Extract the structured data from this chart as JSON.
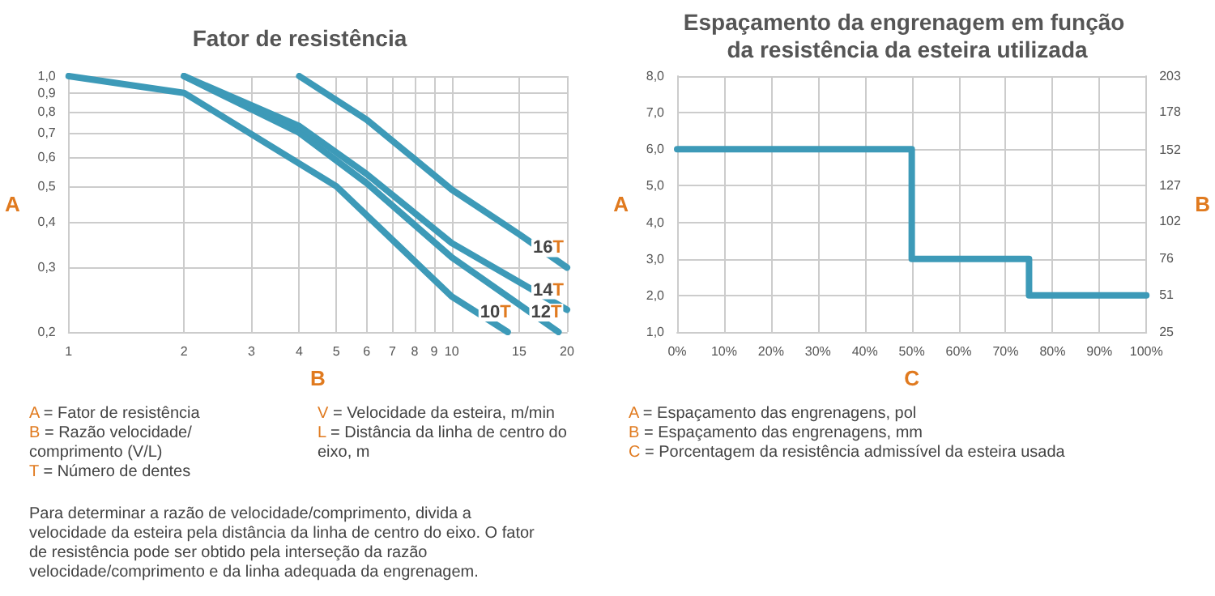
{
  "chart_data": [
    {
      "type": "line",
      "title": "Fator de resistência",
      "xlabel": "B",
      "ylabel": "A",
      "log": "xy",
      "grid": true,
      "legend": false,
      "marker": "none",
      "xlim": [
        1,
        20
      ],
      "xticks": [
        1,
        2,
        3,
        4,
        5,
        6,
        7,
        8,
        9,
        10,
        15,
        20
      ],
      "ylim": [
        0.2,
        1.0
      ],
      "yticks": [
        {
          "value": 0.2,
          "label": "0,2"
        },
        {
          "value": 0.3,
          "label": "0,3"
        },
        {
          "value": 0.4,
          "label": "0,4"
        },
        {
          "value": 0.5,
          "label": "0,5"
        },
        {
          "value": 0.6,
          "label": "0,6"
        },
        {
          "value": 0.7,
          "label": "0,7"
        },
        {
          "value": 0.8,
          "label": "0,8"
        },
        {
          "value": 0.9,
          "label": "0,9"
        },
        {
          "value": 1.0,
          "label": "1,0"
        }
      ],
      "series": [
        {
          "name": "10T",
          "color": "#3d9ab8",
          "x": [
            1,
            2,
            5,
            10,
            14
          ],
          "values": [
            1.0,
            0.9,
            0.5,
            0.25,
            0.2
          ]
        },
        {
          "name": "12T",
          "color": "#3d9ab8",
          "x": [
            2,
            4,
            6,
            10,
            19
          ],
          "values": [
            1.0,
            0.7,
            0.51,
            0.32,
            0.2
          ]
        },
        {
          "name": "14T",
          "color": "#3d9ab8",
          "x": [
            2,
            4,
            6,
            10,
            20
          ],
          "values": [
            1.0,
            0.73,
            0.54,
            0.35,
            0.23
          ]
        },
        {
          "name": "16T",
          "color": "#3d9ab8",
          "x": [
            4,
            6,
            10,
            15,
            20
          ],
          "values": [
            1.0,
            0.76,
            0.49,
            0.37,
            0.3
          ]
        }
      ],
      "annotations": [
        "A = Fator de resistência",
        "B = Razão velocidade/ comprimento (V/L)",
        "T = Número de dentes",
        "V = Velocidade da esteira, m/min",
        "L = Distância da linha de centro do eixo, m",
        "Para determinar a razão de velocidade/comprimento, divida a velocidade da esteira pela distância da linha de centro do eixo. O fator de resistência pode ser obtido pela interseção da razão velocidade/comprimento e da linha adequada da engrenagem."
      ]
    },
    {
      "type": "step",
      "title": "Espaçamento da engrenagem em função da resistência da esteira utilizada",
      "xlabel": "C",
      "ylabel": "A",
      "y2label": "B",
      "grid": true,
      "legend": false,
      "marker": "none",
      "x": [
        0,
        50,
        75,
        100
      ],
      "values": [
        6,
        3,
        2,
        2
      ],
      "color": "#3d9ab8",
      "xlim": [
        0,
        100
      ],
      "xticks": [
        {
          "value": 0,
          "label": "0%"
        },
        {
          "value": 10,
          "label": "10%"
        },
        {
          "value": 20,
          "label": "20%"
        },
        {
          "value": 30,
          "label": "30%"
        },
        {
          "value": 40,
          "label": "40%"
        },
        {
          "value": 50,
          "label": "50%"
        },
        {
          "value": 60,
          "label": "60%"
        },
        {
          "value": 70,
          "label": "70%"
        },
        {
          "value": 80,
          "label": "80%"
        },
        {
          "value": 90,
          "label": "90%"
        },
        {
          "value": 100,
          "label": "100%"
        }
      ],
      "ylim": [
        1,
        8
      ],
      "yticks": [
        {
          "value": 1,
          "label": "1,0"
        },
        {
          "value": 2,
          "label": "2,0"
        },
        {
          "value": 3,
          "label": "3,0"
        },
        {
          "value": 4,
          "label": "4,0"
        },
        {
          "value": 5,
          "label": "5,0"
        },
        {
          "value": 6,
          "label": "6,0"
        },
        {
          "value": 7,
          "label": "7,0"
        },
        {
          "value": 8,
          "label": "8,0"
        }
      ],
      "y2lim": [
        25,
        203
      ],
      "y2ticks": [
        25,
        51,
        76,
        102,
        127,
        152,
        178,
        203
      ],
      "annotations": [
        "A = Espaçamento das engrenagens, pol",
        "B = Espaçamento das engrenagens, mm",
        "C = Porcentagem da resistência admissível da esteira usada"
      ]
    }
  ]
}
